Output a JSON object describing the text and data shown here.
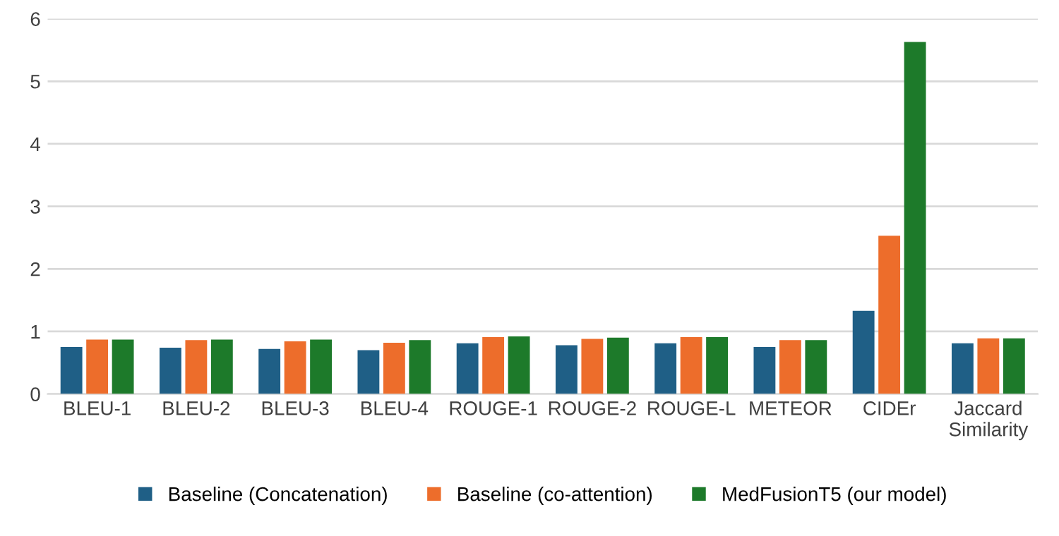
{
  "chart_data": {
    "type": "bar",
    "categories": [
      "BLEU-1",
      "BLEU-2",
      "BLEU-3",
      "BLEU-4",
      "ROUGE-1",
      "ROUGE-2",
      "ROUGE-L",
      "METEOR",
      "CIDEr",
      "Jaccard\nSimilarity"
    ],
    "series": [
      {
        "name": "Baseline (Concatenation)",
        "color": "#1f5f86",
        "values": [
          0.75,
          0.74,
          0.72,
          0.7,
          0.81,
          0.78,
          0.81,
          0.75,
          1.33,
          0.81
        ]
      },
      {
        "name": "Baseline (co-attention)",
        "color": "#ed6d2b",
        "values": [
          0.87,
          0.86,
          0.84,
          0.82,
          0.91,
          0.88,
          0.91,
          0.86,
          2.53,
          0.89
        ]
      },
      {
        "name": "MedFusionT5 (our model)",
        "color": "#1d7a2a",
        "values": [
          0.87,
          0.87,
          0.87,
          0.86,
          0.92,
          0.9,
          0.91,
          0.86,
          5.63,
          0.89
        ]
      }
    ],
    "ylim": [
      0,
      6
    ],
    "yticks": [
      0,
      1,
      2,
      3,
      4,
      5,
      6
    ],
    "grid": "y",
    "legend": "bottom"
  }
}
